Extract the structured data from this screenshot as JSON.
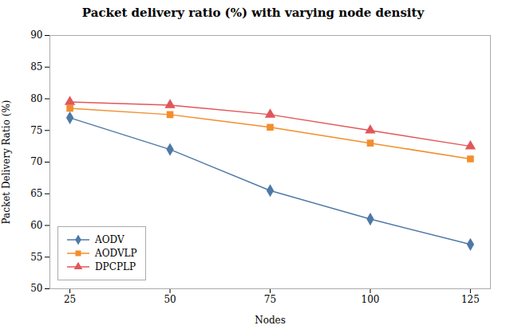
{
  "chart_data": {
    "type": "line",
    "title": "Packet delivery ratio (%) with varying node density",
    "xlabel": "Nodes",
    "ylabel": "Packet Delivery Ratio (%)",
    "x": [
      25,
      50,
      75,
      100,
      125
    ],
    "series": [
      {
        "name": "AODV",
        "values": [
          77,
          72,
          65.5,
          61,
          57
        ],
        "marker": "diamond"
      },
      {
        "name": "AODVLP",
        "values": [
          78.5,
          77.5,
          75.5,
          73,
          70.5
        ],
        "marker": "square"
      },
      {
        "name": "DPCPLP",
        "values": [
          79.5,
          79,
          77.5,
          75,
          72.5
        ],
        "marker": "triangle"
      }
    ],
    "xlim": [
      20,
      130
    ],
    "xticks": [
      25,
      50,
      75,
      100,
      125
    ],
    "ylim": [
      50,
      90
    ],
    "yticks": [
      50,
      55,
      60,
      65,
      70,
      75,
      80,
      85,
      90
    ],
    "grid": false,
    "legend": "lower left"
  }
}
